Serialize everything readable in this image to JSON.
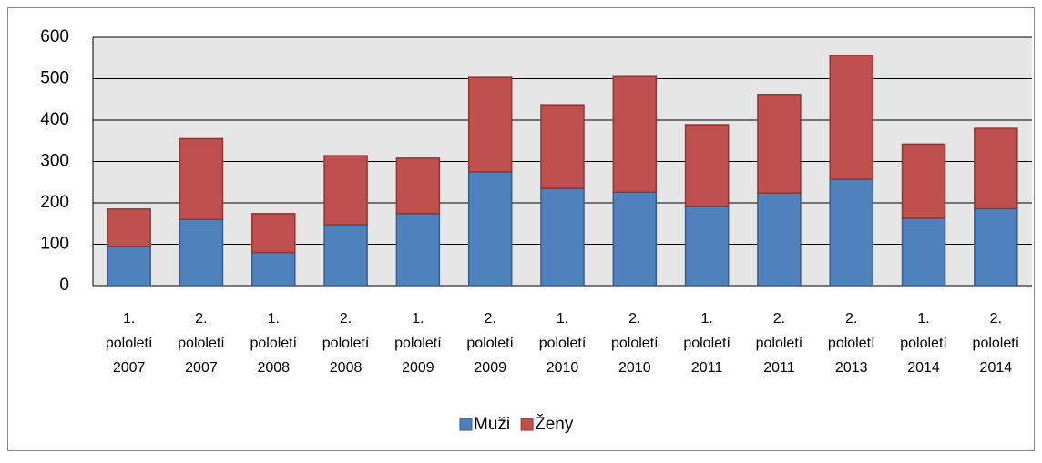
{
  "chart_data": {
    "type": "stacked_bar",
    "categories": [
      "1. pololetí 2007",
      "2. pololetí 2007",
      "1. pololetí 2008",
      "2. pololetí 2008",
      "1. pololetí 2009",
      "2. pololetí 2009",
      "1. pololetí 2010",
      "2. pololetí 2010",
      "1. pololetí 2011",
      "2. pololetí 2011",
      "2. pololetí 2013",
      "1. pololetí 2014",
      "2. pololetí 2014"
    ],
    "series": [
      {
        "name": "Muži",
        "color": "#4f81bd",
        "values": [
          95,
          160,
          80,
          147,
          174,
          275,
          235,
          226,
          191,
          224,
          257,
          163,
          186
        ]
      },
      {
        "name": "Ženy",
        "color": "#c0504d",
        "values": [
          90,
          195,
          94,
          167,
          134,
          228,
          202,
          279,
          198,
          238,
          299,
          179,
          194
        ]
      }
    ],
    "ylim": [
      0,
      600
    ],
    "yticks": [
      0,
      100,
      200,
      300,
      400,
      500,
      600
    ],
    "grid": true,
    "legend": "bottom"
  }
}
